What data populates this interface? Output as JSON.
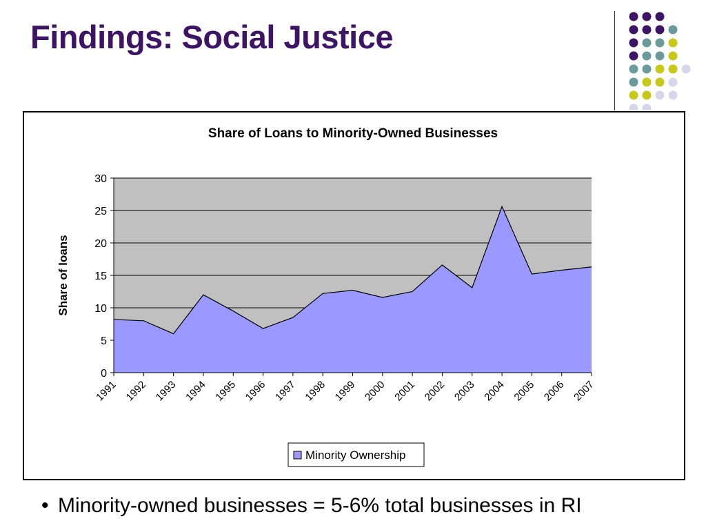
{
  "slide": {
    "title": "Findings: Social Justice",
    "bullet": "Minority-owned businesses = 5-6% total businesses in RI",
    "bullet_symbol": "•"
  },
  "decor": {
    "dot_colors": {
      "purple": "#3d1466",
      "teal": "#6a9a9a",
      "yellow": "#c8c819",
      "lavender": "#d6d6ea"
    },
    "dot_pattern": [
      [
        "purple",
        "purple",
        "purple"
      ],
      [
        "purple",
        "purple",
        "purple",
        "teal"
      ],
      [
        "purple",
        "teal",
        "teal",
        "yellow"
      ],
      [
        "purple",
        "teal",
        "teal",
        "yellow"
      ],
      [
        "teal",
        "teal",
        "yellow",
        "yellow",
        "lavender"
      ],
      [
        "teal",
        "yellow",
        "yellow",
        "lavender"
      ],
      [
        "yellow",
        "yellow",
        "lavender",
        "lavender"
      ],
      [
        "lavender",
        "lavender"
      ]
    ]
  },
  "chart_data": {
    "type": "area",
    "title": "Share of Loans to Minority-Owned Businesses",
    "xlabel": "",
    "ylabel": "Share of loans",
    "x": [
      "1991",
      "1992",
      "1993",
      "1994",
      "1995",
      "1996",
      "1997",
      "1998",
      "1999",
      "2000",
      "2001",
      "2002",
      "2003",
      "2004",
      "2005",
      "2006",
      "2007"
    ],
    "series": [
      {
        "name": "Minority Ownership",
        "values": [
          8.2,
          8.0,
          6.0,
          12.0,
          9.5,
          6.8,
          8.5,
          12.2,
          12.7,
          11.6,
          12.5,
          16.6,
          13.1,
          25.6,
          15.2,
          15.8,
          16.3
        ],
        "color": "#9999ff"
      }
    ],
    "ylim": [
      0,
      30
    ],
    "yticks": [
      0,
      5,
      10,
      15,
      20,
      25,
      30
    ],
    "grid": true,
    "plot_background": "#c0c0c0",
    "legend": "bottom-center"
  }
}
